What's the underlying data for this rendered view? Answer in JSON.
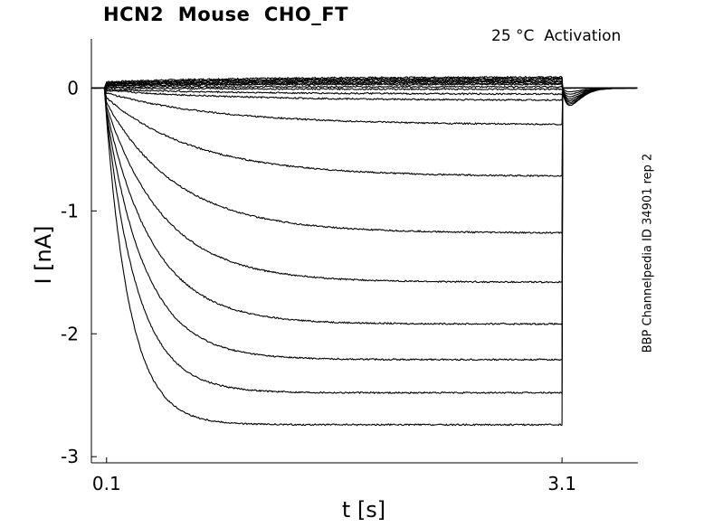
{
  "chart_data": {
    "type": "line",
    "title": "HCN2  Mouse  CHO_FT",
    "annotation": "25 °C  Activation",
    "side_label": "BBP Channelpedia ID 34901 rep 2",
    "xlabel": "t [s]",
    "ylabel": "I [nA]",
    "xlim": [
      0,
      3.6
    ],
    "ylim": [
      -3.05,
      0.4
    ],
    "x_ticks": [
      0.1,
      3.1
    ],
    "x_tick_labels": [
      "0.1",
      "3.1"
    ],
    "y_ticks": [
      0,
      -1,
      -2,
      -3
    ],
    "y_tick_labels": [
      "0",
      "-1",
      "-2",
      "-3"
    ],
    "step_start": 0.1,
    "step_end": 3.1,
    "legend": "none",
    "grid": false,
    "series": [
      {
        "steady_state": 0.09,
        "initial": 0.05
      },
      {
        "steady_state": 0.08,
        "initial": 0.04
      },
      {
        "steady_state": 0.07,
        "initial": 0.04
      },
      {
        "steady_state": 0.06,
        "initial": 0.03
      },
      {
        "steady_state": 0.05,
        "initial": 0.03
      },
      {
        "steady_state": 0.04,
        "initial": 0.02
      },
      {
        "steady_state": 0.03,
        "initial": 0.02
      },
      {
        "steady_state": 0.01,
        "initial": 0.01
      },
      {
        "steady_state": -0.01,
        "initial": 0.0
      },
      {
        "steady_state": -0.05,
        "initial": -0.01
      },
      {
        "steady_state": -0.1,
        "initial": -0.02
      },
      {
        "steady_state": -0.3,
        "initial": -0.04
      },
      {
        "steady_state": -0.72,
        "initial": -0.08
      },
      {
        "steady_state": -1.18,
        "initial": -0.12
      },
      {
        "steady_state": -1.58,
        "initial": -0.15
      },
      {
        "steady_state": -1.92,
        "initial": -0.18
      },
      {
        "steady_state": -2.21,
        "initial": -0.2
      },
      {
        "steady_state": -2.48,
        "initial": -0.22
      },
      {
        "steady_state": -2.74,
        "initial": -0.25
      }
    ]
  }
}
